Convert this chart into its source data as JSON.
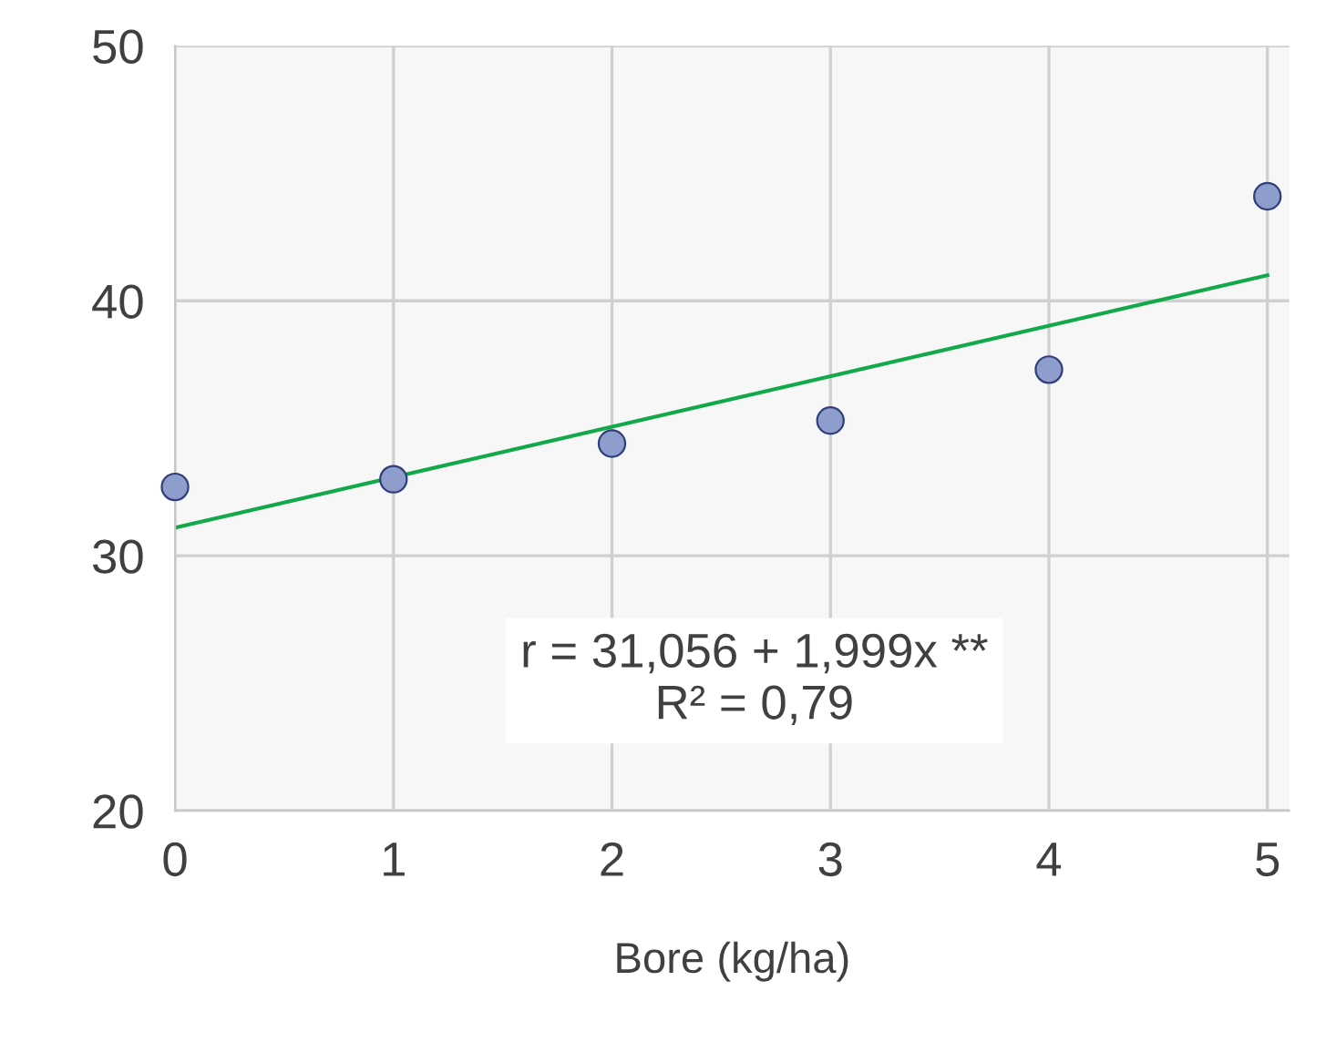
{
  "chart_data": {
    "type": "scatter",
    "xlabel": "Bore (kg/ha)",
    "x": [
      0,
      1,
      2,
      3,
      4,
      5
    ],
    "series": [
      {
        "color": "#8e9dcb",
        "marker": "circle",
        "values": [
          32.7,
          33.0,
          34.4,
          35.3,
          37.3,
          44.1
        ]
      },
      {
        "type": "line",
        "color": "#13a94b",
        "marker": "none",
        "x": [
          0,
          5
        ],
        "values": [
          31.1,
          41.0
        ]
      }
    ],
    "xlim": [
      0,
      5.1
    ],
    "ylim": [
      20,
      50
    ],
    "xticks": [
      0,
      1,
      2,
      3,
      4,
      5
    ],
    "yticks": [
      20,
      30,
      40,
      50
    ],
    "grid": true,
    "annotations": [
      "r = 31,056 + 1,999x **\nR² = 0,79"
    ]
  }
}
